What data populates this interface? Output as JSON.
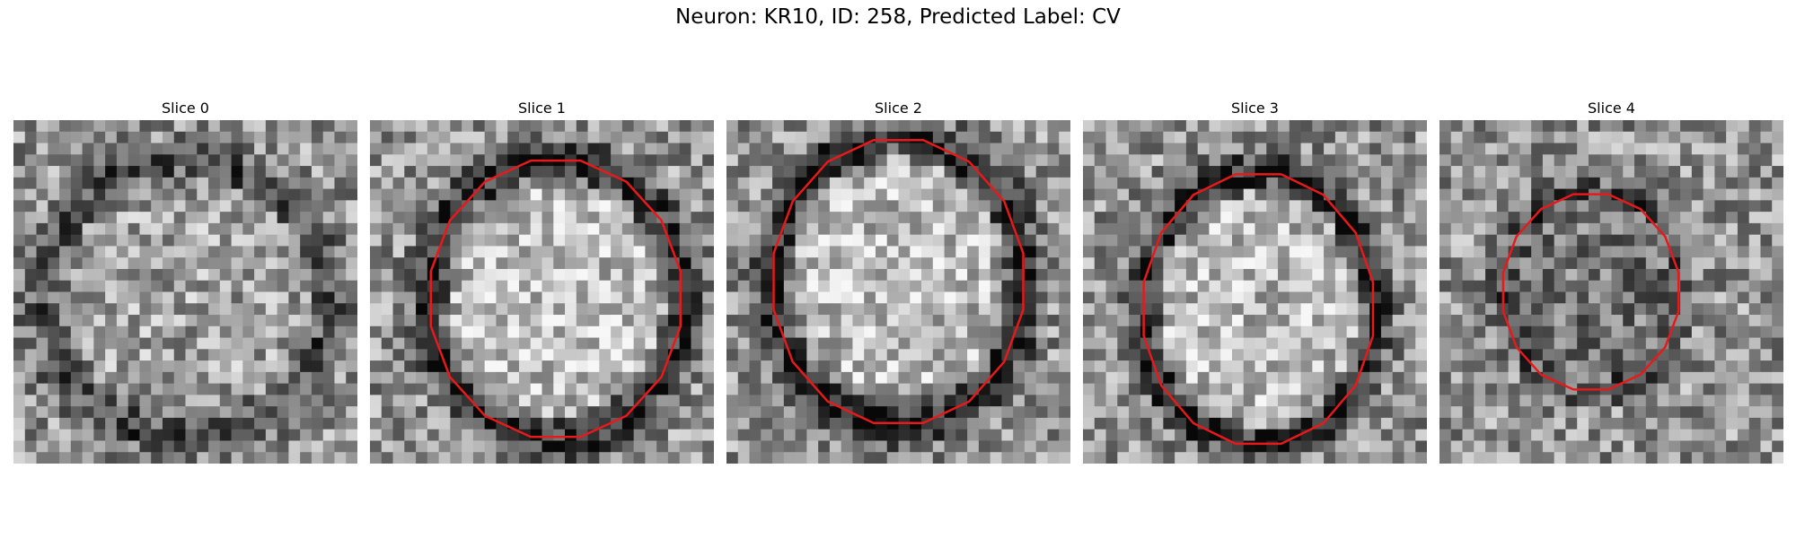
{
  "figure": {
    "title": "Neuron: KR10, ID: 258, Predicted Label: CV",
    "contour_color": "#e8191b"
  },
  "panels": [
    {
      "title": "Slice 0",
      "has_contour": false,
      "seed": 11
    },
    {
      "title": "Slice 1",
      "has_contour": true,
      "seed": 23
    },
    {
      "title": "Slice 2",
      "has_contour": true,
      "seed": 37
    },
    {
      "title": "Slice 3",
      "has_contour": true,
      "seed": 51
    },
    {
      "title": "Slice 4",
      "has_contour": true,
      "seed": 67
    }
  ]
}
